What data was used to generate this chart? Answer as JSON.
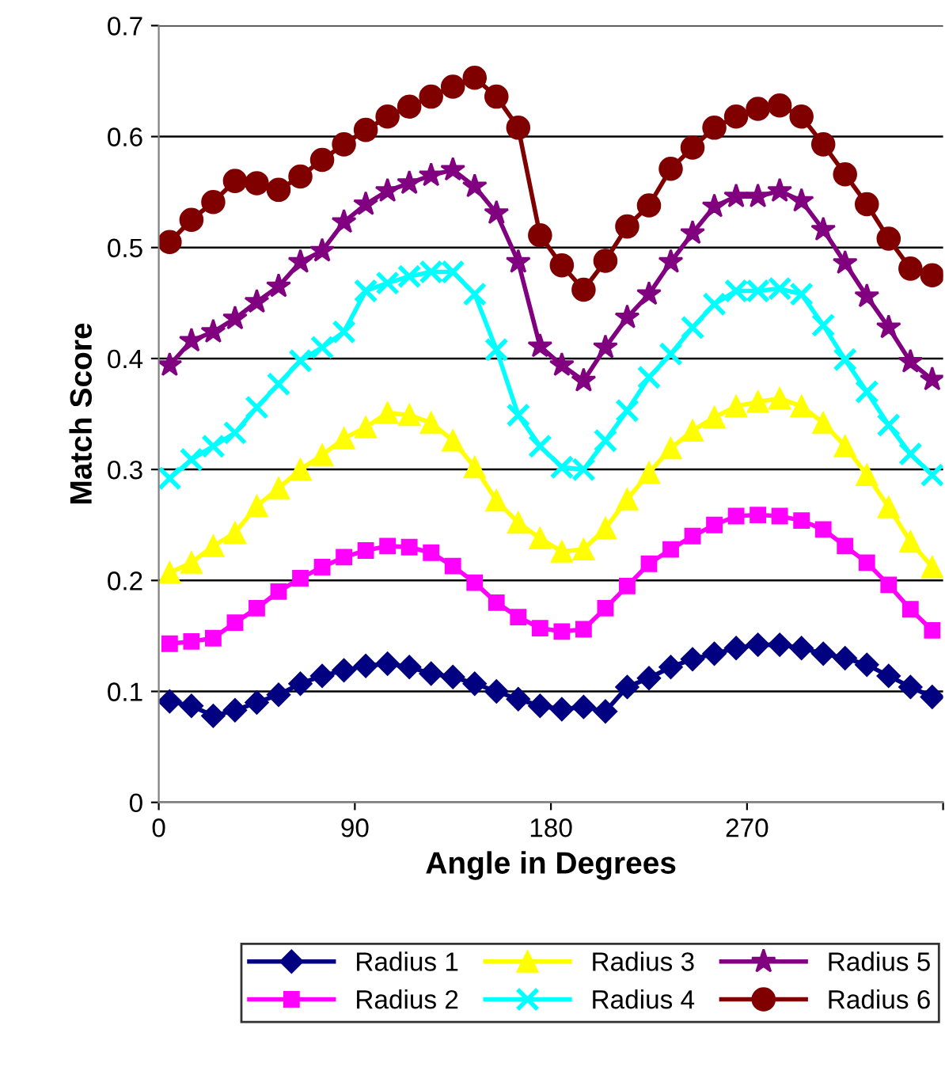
{
  "chart_data": {
    "type": "line",
    "xlabel": "Angle in Degrees",
    "ylabel": "Match Score",
    "x": [
      5,
      15,
      25,
      35,
      45,
      55,
      65,
      75,
      85,
      95,
      105,
      115,
      125,
      135,
      145,
      155,
      165,
      175,
      185,
      195,
      205,
      215,
      225,
      235,
      245,
      255,
      265,
      275,
      285,
      295,
      305,
      315,
      325,
      335,
      345,
      355
    ],
    "series": [
      {
        "name": "Radius 1",
        "color": "#000080",
        "marker": "diamond",
        "values": [
          0.091,
          0.087,
          0.078,
          0.083,
          0.09,
          0.097,
          0.107,
          0.114,
          0.119,
          0.123,
          0.125,
          0.122,
          0.116,
          0.113,
          0.107,
          0.1,
          0.093,
          0.087,
          0.084,
          0.086,
          0.082,
          0.104,
          0.112,
          0.122,
          0.129,
          0.134,
          0.139,
          0.142,
          0.142,
          0.139,
          0.134,
          0.13,
          0.124,
          0.114,
          0.104,
          0.095
        ]
      },
      {
        "name": "Radius 2",
        "color": "#ff00ff",
        "marker": "square",
        "values": [
          0.143,
          0.145,
          0.148,
          0.162,
          0.175,
          0.19,
          0.202,
          0.212,
          0.221,
          0.227,
          0.231,
          0.23,
          0.225,
          0.213,
          0.198,
          0.18,
          0.167,
          0.157,
          0.154,
          0.156,
          0.175,
          0.195,
          0.215,
          0.228,
          0.24,
          0.25,
          0.258,
          0.259,
          0.258,
          0.254,
          0.246,
          0.231,
          0.216,
          0.196,
          0.174,
          0.155
        ]
      },
      {
        "name": "Radius 3",
        "color": "#ffff00",
        "marker": "triangle",
        "values": [
          0.207,
          0.216,
          0.231,
          0.243,
          0.267,
          0.283,
          0.3,
          0.313,
          0.328,
          0.338,
          0.351,
          0.349,
          0.342,
          0.326,
          0.302,
          0.272,
          0.252,
          0.238,
          0.226,
          0.228,
          0.247,
          0.273,
          0.297,
          0.319,
          0.335,
          0.347,
          0.357,
          0.361,
          0.364,
          0.357,
          0.342,
          0.321,
          0.295,
          0.266,
          0.235,
          0.212
        ]
      },
      {
        "name": "Radius 4",
        "color": "#00ffff",
        "marker": "cross",
        "values": [
          0.292,
          0.309,
          0.321,
          0.333,
          0.356,
          0.377,
          0.398,
          0.41,
          0.424,
          0.461,
          0.468,
          0.474,
          0.478,
          0.478,
          0.458,
          0.408,
          0.349,
          0.321,
          0.302,
          0.3,
          0.326,
          0.353,
          0.383,
          0.404,
          0.428,
          0.449,
          0.461,
          0.461,
          0.463,
          0.458,
          0.43,
          0.399,
          0.37,
          0.34,
          0.314,
          0.295
        ]
      },
      {
        "name": "Radius 5",
        "color": "#800080",
        "marker": "star",
        "values": [
          0.394,
          0.416,
          0.424,
          0.436,
          0.451,
          0.465,
          0.487,
          0.497,
          0.523,
          0.539,
          0.551,
          0.558,
          0.565,
          0.57,
          0.555,
          0.531,
          0.487,
          0.411,
          0.394,
          0.38,
          0.41,
          0.437,
          0.458,
          0.487,
          0.513,
          0.537,
          0.546,
          0.546,
          0.551,
          0.542,
          0.516,
          0.486,
          0.456,
          0.428,
          0.397,
          0.381
        ]
      },
      {
        "name": "Radius 6",
        "color": "#800000",
        "marker": "circle",
        "values": [
          0.505,
          0.525,
          0.541,
          0.56,
          0.558,
          0.552,
          0.564,
          0.579,
          0.593,
          0.606,
          0.618,
          0.627,
          0.636,
          0.645,
          0.653,
          0.636,
          0.608,
          0.511,
          0.484,
          0.462,
          0.488,
          0.519,
          0.538,
          0.571,
          0.59,
          0.608,
          0.618,
          0.625,
          0.628,
          0.618,
          0.593,
          0.566,
          0.539,
          0.508,
          0.481,
          0.475
        ]
      }
    ],
    "xlim": [
      0,
      360
    ],
    "xticks": [
      0,
      90,
      180,
      270,
      {
        "value": 360,
        "label": null
      }
    ],
    "ylim": [
      0,
      0.7
    ],
    "yticks": [
      0,
      0.1,
      0.2,
      0.3,
      0.4,
      0.5,
      0.6,
      0.7
    ],
    "grid": "y",
    "legend": "bottom",
    "line_style": "solid"
  }
}
